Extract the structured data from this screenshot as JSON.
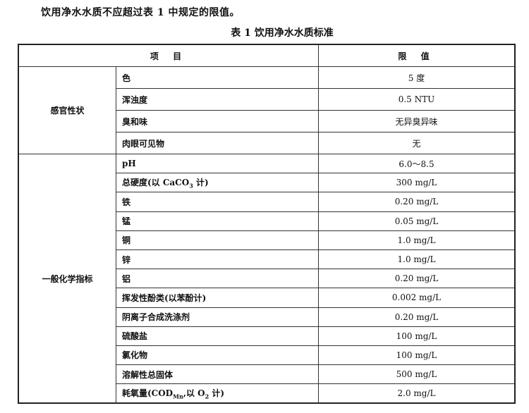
{
  "intro": "饮用净水水质不应超过表 1 中规定的限值。",
  "caption": "表 1   饮用净水水质标准",
  "header": {
    "item": "项  目",
    "limit": "限 值"
  },
  "sections": [
    {
      "category": "感官性状",
      "rows": [
        {
          "item": "色",
          "value": "5 度"
        },
        {
          "item": "浑浊度",
          "value": "0.5 NTU"
        },
        {
          "item": "臭和味",
          "value": "无异臭异味"
        },
        {
          "item": "肉眼可见物",
          "value": "无"
        }
      ]
    },
    {
      "category": "一般化学指标",
      "rows": [
        {
          "item": "pH",
          "value": "6.0～8.5"
        },
        {
          "item": "总硬度(以 CaCO",
          "item_sub": "3",
          "item_after": " 计)",
          "value": "300 mg/L"
        },
        {
          "item": "铁",
          "value": "0.20 mg/L"
        },
        {
          "item": "锰",
          "value": "0.05 mg/L"
        },
        {
          "item": "铜",
          "value": "1.0 mg/L"
        },
        {
          "item": "锌",
          "value": "1.0 mg/L"
        },
        {
          "item": "铝",
          "value": "0.20 mg/L"
        },
        {
          "item": "挥发性酚类(以苯酚计)",
          "value": "0.002 mg/L"
        },
        {
          "item": "阴离子合成洗涤剂",
          "value": "0.20 mg/L"
        },
        {
          "item": "硫酸盐",
          "value": "100 mg/L"
        },
        {
          "item": "氯化物",
          "value": "100 mg/L"
        },
        {
          "item": "溶解性总固体",
          "value": "500 mg/L"
        },
        {
          "item": "耗氧量(COD",
          "item_sub": "Mn",
          "item_after": ",以 O",
          "item_sub2": "2",
          "item_after2": " 计)",
          "value": "2.0 mg/L"
        }
      ]
    }
  ]
}
